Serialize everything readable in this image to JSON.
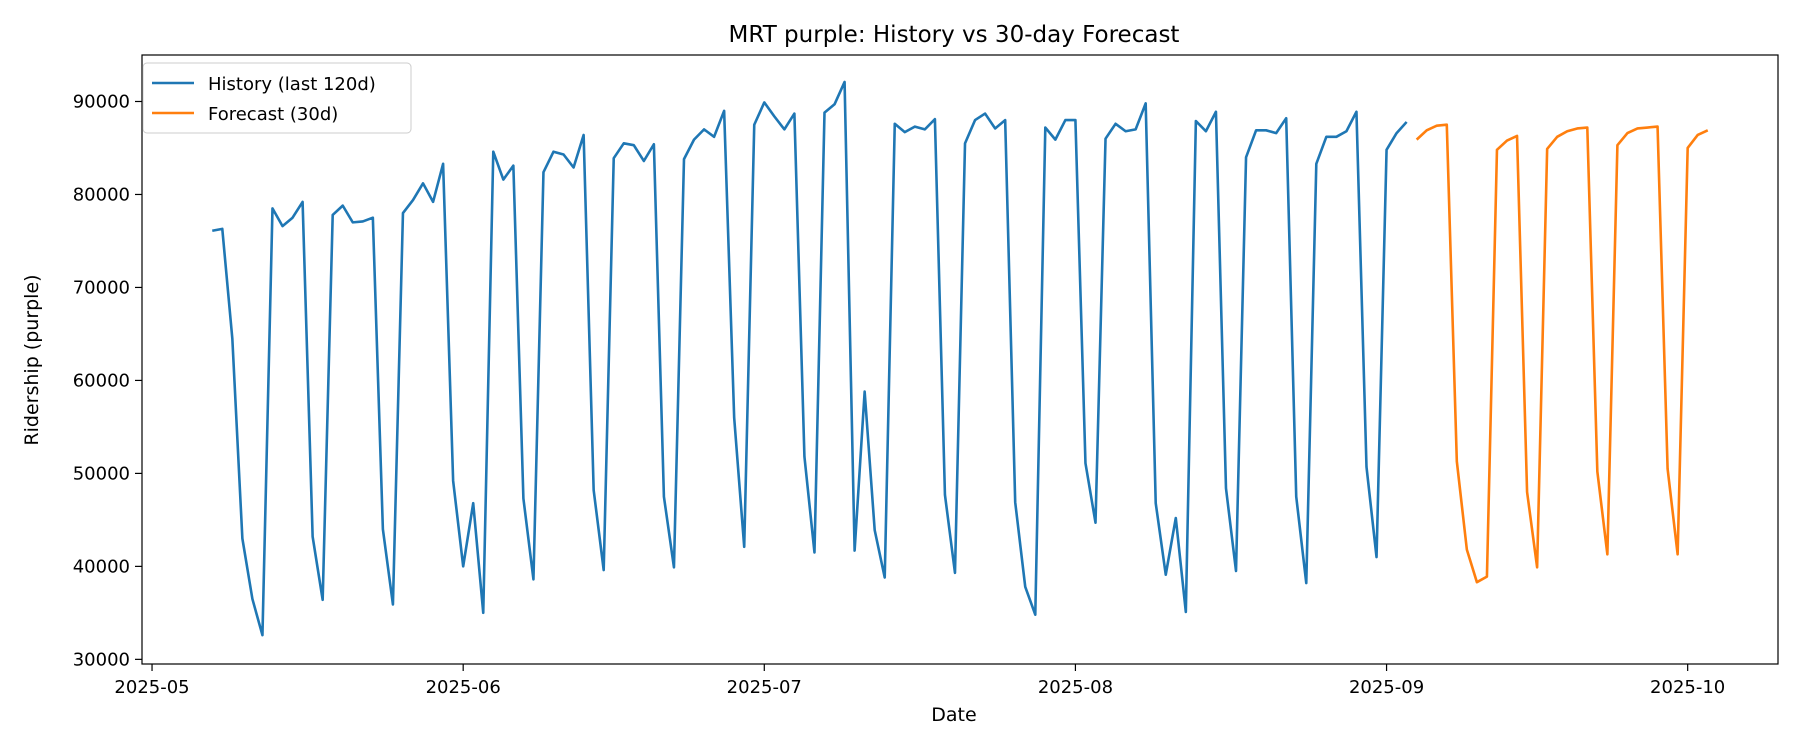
{
  "chart_data": {
    "type": "line",
    "title": "MRT purple: History vs 30-day Forecast",
    "xlabel": "Date",
    "ylabel": "Ridership (purple)",
    "xlim": [
      "2025-04-30",
      "2025-10-10"
    ],
    "ylim": [
      29500,
      95000
    ],
    "x_ticks": [
      "2025-05-01",
      "2025-06-01",
      "2025-07-01",
      "2025-08-01",
      "2025-09-01",
      "2025-10-01"
    ],
    "x_tick_labels": [
      "2025-05",
      "2025-06",
      "2025-07",
      "2025-08",
      "2025-09",
      "2025-10"
    ],
    "y_ticks": [
      30000,
      40000,
      50000,
      60000,
      70000,
      80000,
      90000
    ],
    "y_tick_labels": [
      "30000",
      "40000",
      "50000",
      "60000",
      "70000",
      "80000",
      "90000"
    ],
    "grid": false,
    "legend_position": "top-left",
    "series": [
      {
        "name": "History (last 120d)",
        "color": "#1f77b4",
        "start_date": "2025-05-07",
        "values": [
          76100,
          76300,
          64500,
          43000,
          36500,
          32600,
          78500,
          76600,
          77500,
          79200,
          43200,
          36400,
          77800,
          78800,
          77000,
          77100,
          77500,
          44000,
          35900,
          78000,
          79400,
          81200,
          79200,
          83300,
          49200,
          40000,
          46800,
          35000,
          84600,
          81600,
          83100,
          47300,
          38600,
          82400,
          84600,
          84300,
          82900,
          86400,
          48200,
          39600,
          83900,
          85500,
          85300,
          83600,
          85400,
          47500,
          39900,
          83800,
          85900,
          87000,
          86200,
          89000,
          56000,
          42100,
          87500,
          89900,
          88400,
          87000,
          88700,
          51800,
          41500,
          88800,
          89700,
          92100,
          41700,
          58800,
          43900,
          38800,
          87600,
          86700,
          87300,
          87000,
          88100,
          47700,
          39300,
          85500,
          88000,
          88700,
          87100,
          88000,
          46900,
          37800,
          34800,
          87200,
          85900,
          88000,
          88000,
          51100,
          44700,
          86000,
          87600,
          86800,
          87000,
          89800,
          46800,
          39100,
          45200,
          35100,
          87900,
          86800,
          88900,
          48400,
          39500,
          84000,
          86900,
          86900,
          86600,
          88200,
          47500,
          38200,
          83300,
          86200,
          86200,
          86800,
          88900,
          50700,
          41000,
          84800,
          86600,
          87800
        ]
      },
      {
        "name": "Forecast (30d)",
        "color": "#ff7f0e",
        "start_date": "2025-09-04",
        "values": [
          85900,
          86900,
          87400,
          87500,
          51300,
          41800,
          38300,
          38900,
          84800,
          85800,
          86300,
          48000,
          39900,
          84900,
          86200,
          86800,
          87100,
          87200,
          50200,
          41300,
          85300,
          86600,
          87100,
          87200,
          87300,
          50500,
          41300,
          85000,
          86400,
          86900
        ]
      }
    ]
  }
}
